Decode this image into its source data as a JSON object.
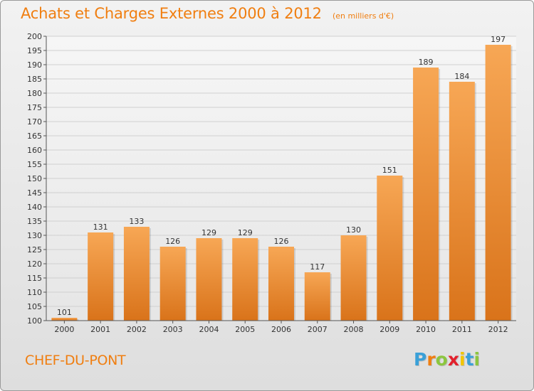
{
  "title": "Achats et Charges Externes 2000 à 2012",
  "unit_note": "(en milliers d'€)",
  "commune": "CHEF-DU-PONT",
  "logo": {
    "letters": [
      "P",
      "r",
      "o",
      "x",
      "i",
      "t",
      "i"
    ],
    "colors": [
      "#3aa0d8",
      "#f07e10",
      "#8cc63f",
      "#e2202c",
      "#f2c500",
      "#3aa0d8",
      "#8cc63f"
    ]
  },
  "colors": {
    "bar_top": "#f7a755",
    "bar_bottom": "#d9731a",
    "title": "#f07e10"
  },
  "chart_data": {
    "type": "bar",
    "title": "Achats et Charges Externes 2000 à 2012",
    "xlabel": "",
    "ylabel": "",
    "categories": [
      "2000",
      "2001",
      "2002",
      "2003",
      "2004",
      "2005",
      "2006",
      "2007",
      "2008",
      "2009",
      "2010",
      "2011",
      "2012"
    ],
    "values": [
      101,
      131,
      133,
      126,
      129,
      129,
      126,
      117,
      130,
      151,
      189,
      184,
      197
    ],
    "ylim": [
      100,
      200
    ],
    "yticks": [
      100,
      105,
      110,
      115,
      120,
      125,
      130,
      135,
      140,
      145,
      150,
      155,
      160,
      165,
      170,
      175,
      180,
      185,
      190,
      195,
      200
    ],
    "grid": true
  }
}
